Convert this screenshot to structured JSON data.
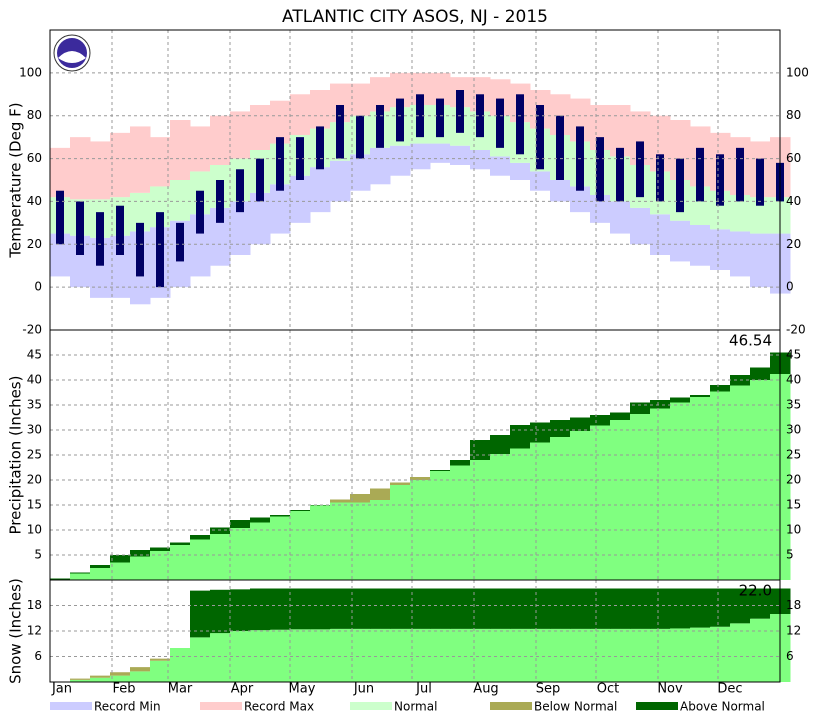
{
  "chart_data": [
    {
      "type": "temperature",
      "title": "ATLANTIC CITY  ASOS, NJ - 2015",
      "ylabel": "Temperature (Deg F)",
      "x": [
        1,
        11,
        21,
        31,
        41,
        51,
        61,
        71,
        81,
        91,
        101,
        111,
        121,
        131,
        141,
        151,
        161,
        171,
        181,
        191,
        201,
        211,
        221,
        231,
        241,
        251,
        261,
        271,
        281,
        291,
        301,
        311,
        321,
        331,
        341,
        351,
        361
      ],
      "xlim": [
        1,
        366
      ],
      "xticks": [
        {
          "value": 1,
          "label": "Jan"
        },
        {
          "value": 32,
          "label": "Feb"
        },
        {
          "value": 60,
          "label": "Mar"
        },
        {
          "value": 91,
          "label": "Apr"
        },
        {
          "value": 121,
          "label": "May"
        },
        {
          "value": 152,
          "label": "Jun"
        },
        {
          "value": 182,
          "label": "Jul"
        },
        {
          "value": 213,
          "label": "Aug"
        },
        {
          "value": 244,
          "label": "Sep"
        },
        {
          "value": 274,
          "label": "Oct"
        },
        {
          "value": 305,
          "label": "Nov"
        },
        {
          "value": 335,
          "label": "Dec"
        }
      ],
      "ylim": [
        -20,
        120
      ],
      "yticks": [
        -20,
        0,
        20,
        40,
        60,
        80,
        100
      ],
      "grid": true,
      "series": [
        {
          "name": "Record Min",
          "color": "#ccccff",
          "values": [
            5,
            0,
            -5,
            -5,
            -8,
            -5,
            0,
            5,
            10,
            15,
            20,
            25,
            30,
            35,
            40,
            45,
            48,
            52,
            55,
            58,
            57,
            55,
            52,
            50,
            45,
            40,
            35,
            30,
            25,
            20,
            15,
            12,
            10,
            8,
            5,
            0,
            -3
          ]
        },
        {
          "name": "Record Max",
          "color": "#ffcccc",
          "values": [
            65,
            70,
            68,
            72,
            75,
            70,
            78,
            75,
            80,
            82,
            85,
            87,
            90,
            92,
            95,
            95,
            98,
            100,
            100,
            100,
            98,
            98,
            97,
            95,
            92,
            90,
            88,
            85,
            85,
            82,
            80,
            78,
            75,
            72,
            70,
            68,
            70
          ]
        },
        {
          "name": "Normal",
          "color": "#ccffcc",
          "low": [
            25,
            24,
            23,
            24,
            26,
            28,
            31,
            34,
            37,
            40,
            44,
            48,
            52,
            56,
            59,
            62,
            65,
            66,
            67,
            67,
            66,
            64,
            61,
            58,
            54,
            50,
            47,
            43,
            40,
            37,
            34,
            31,
            29,
            27,
            26,
            25,
            25
          ],
          "high": [
            42,
            41,
            41,
            42,
            44,
            47,
            50,
            54,
            57,
            60,
            64,
            67,
            71,
            74,
            77,
            80,
            82,
            84,
            85,
            85,
            84,
            82,
            80,
            77,
            74,
            71,
            68,
            64,
            61,
            57,
            54,
            50,
            47,
            45,
            43,
            42,
            42
          ]
        }
      ],
      "observed": {
        "color": "#000066",
        "low": [
          20,
          15,
          10,
          15,
          5,
          0,
          12,
          25,
          30,
          35,
          40,
          45,
          50,
          55,
          60,
          60,
          65,
          68,
          70,
          70,
          72,
          70,
          65,
          62,
          55,
          50,
          45,
          40,
          40,
          42,
          40,
          35,
          40,
          38,
          40,
          38,
          40
        ],
        "high": [
          45,
          40,
          35,
          38,
          30,
          35,
          30,
          45,
          50,
          55,
          60,
          70,
          70,
          75,
          85,
          80,
          85,
          88,
          90,
          88,
          92,
          90,
          88,
          90,
          85,
          80,
          75,
          70,
          65,
          68,
          62,
          60,
          65,
          62,
          65,
          60,
          58
        ]
      }
    },
    {
      "type": "cumulative",
      "ylabel": "Precipitation (Inches)",
      "annotation": "46.54",
      "ylim": [
        0,
        50
      ],
      "yticks": [
        5,
        10,
        15,
        20,
        25,
        30,
        35,
        40,
        45
      ],
      "grid": true,
      "normal_color": "#80ff80",
      "normal": [
        0.1,
        1.3,
        2.4,
        3.5,
        4.7,
        5.8,
        7.0,
        8.1,
        9.2,
        10.4,
        11.5,
        12.7,
        13.8,
        14.9,
        16.1,
        17.2,
        18.3,
        19.5,
        20.6,
        21.8,
        22.9,
        24.0,
        25.2,
        26.3,
        27.5,
        28.6,
        29.8,
        30.9,
        32.0,
        33.2,
        34.3,
        35.5,
        36.6,
        37.7,
        38.9,
        40.0,
        41.2
      ],
      "observed": [
        0.3,
        1.5,
        3,
        5,
        6,
        6.5,
        7.5,
        9,
        10.5,
        12,
        12.5,
        13,
        14,
        15,
        15.5,
        15.5,
        16,
        19,
        20,
        22,
        24,
        28,
        29,
        31,
        31.5,
        32,
        32.5,
        33,
        33.5,
        35.5,
        36,
        36.5,
        37,
        39,
        41,
        42.5,
        45.5
      ]
    },
    {
      "type": "cumulative",
      "ylabel": "Snow (Inches)",
      "annotation": "22.0",
      "ylim": [
        0,
        24
      ],
      "yticks": [
        6,
        12,
        18
      ],
      "grid": true,
      "normal_color": "#80ff80",
      "normal": [
        0.1,
        0.8,
        1.5,
        2.3,
        3.5,
        5.5,
        8,
        10.5,
        11.5,
        12,
        12.2,
        12.3,
        12.4,
        12.4,
        12.5,
        12.5,
        12.5,
        12.5,
        12.5,
        12.5,
        12.5,
        12.5,
        12.5,
        12.5,
        12.5,
        12.5,
        12.5,
        12.5,
        12.5,
        12.5,
        12.5,
        12.6,
        12.8,
        13.0,
        13.8,
        14.9,
        16.0
      ],
      "observed": [
        0,
        0.5,
        1,
        1.5,
        2.5,
        5,
        8,
        21.5,
        21.7,
        21.8,
        22,
        22,
        22,
        22,
        22,
        22,
        22,
        22,
        22,
        22,
        22,
        22,
        22,
        22,
        22,
        22,
        22,
        22,
        22,
        22,
        22,
        22,
        22,
        22,
        22,
        22,
        22
      ]
    }
  ],
  "legend": [
    {
      "name": "Record Min",
      "color": "#ccccff"
    },
    {
      "name": "Record Max",
      "color": "#ffcccc"
    },
    {
      "name": "Normal",
      "color": "#ccffcc"
    },
    {
      "name": "Below Normal",
      "color": "#aaaa55"
    },
    {
      "name": "Above Normal",
      "color": "#006600"
    }
  ]
}
